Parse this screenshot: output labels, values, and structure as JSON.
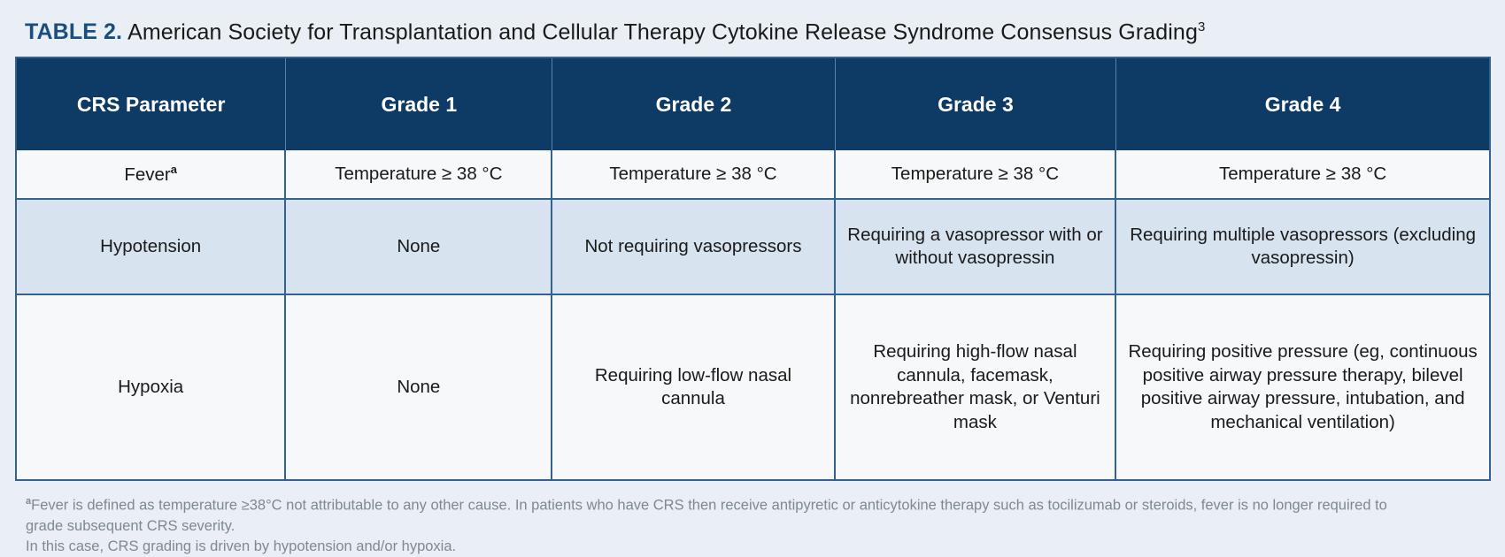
{
  "title": {
    "label": "TABLE 2.",
    "text": "American Society for Transplantation and Cellular Therapy Cytokine Release Syndrome Consensus Grading",
    "reference": "3"
  },
  "table": {
    "columns": [
      "CRS Parameter",
      "Grade 1",
      "Grade 2",
      "Grade 3",
      "Grade 4"
    ],
    "rows": [
      {
        "parameter": "Fever",
        "parameter_sup": "a",
        "grade1": "Temperature ≥ 38 °C",
        "grade2": "Temperature ≥ 38 °C",
        "grade3": "Temperature ≥ 38 °C",
        "grade4": "Temperature ≥ 38 °C"
      },
      {
        "parameter": "Hypotension",
        "parameter_sup": "",
        "grade1": "None",
        "grade2": "Not requiring vasopressors",
        "grade3": "Requiring a vasopressor with or without vasopressin",
        "grade4": "Requiring multiple vasopressors (excluding vasopressin)"
      },
      {
        "parameter": "Hypoxia",
        "parameter_sup": "",
        "grade1": "None",
        "grade2": "Requiring low-flow nasal cannula",
        "grade3": "Requiring high-flow nasal cannula, facemask, nonrebreather mask, or Venturi mask",
        "grade4": "Requiring positive pressure (eg, continuous positive airway pressure therapy, bilevel positive airway pressure, intubation, and mechanical ventilation)"
      }
    ]
  },
  "footnote": {
    "marker": "a",
    "line1": "Fever is defined as temperature ≥38°C not attributable to any other cause. In patients who have CRS then receive antipyretic or anticytokine therapy such as tocilizumab or steroids, fever is no longer required to grade subsequent CRS severity.",
    "line2": "In this case, CRS grading is driven by hypotension and/or hypoxia."
  },
  "colors": {
    "page_background": "#e9eff4",
    "header_background": "#0e3a66",
    "header_text": "#ffffff",
    "row_light": "#f7f8f9",
    "row_blue": "#d7e3ee",
    "border_blue": "#35618f",
    "title_accent": "#1b4e80",
    "footnote_text": "#7e8991"
  }
}
